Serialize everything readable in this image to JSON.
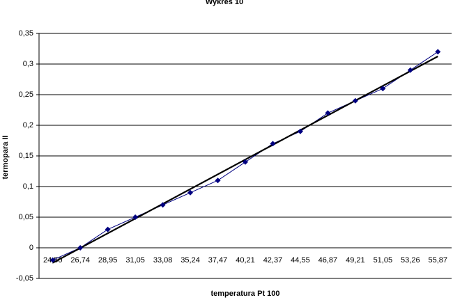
{
  "chart_data": {
    "type": "line",
    "title": "Wykres 10",
    "x_label": "temperatura Pt 100",
    "y_label": "termopara II",
    "categories": [
      "24,50",
      "26,74",
      "28,95",
      "31,05",
      "33,08",
      "35,24",
      "37,47",
      "40,21",
      "42,37",
      "44,55",
      "46,87",
      "49,21",
      "51,05",
      "53,26",
      "55,87"
    ],
    "series": [
      {
        "color": "#000080",
        "values": [
          -0.02,
          0,
          0.03,
          0.05,
          0.07,
          0.09,
          0.11,
          0.14,
          0.17,
          0.19,
          0.22,
          0.24,
          0.26,
          0.29,
          0.32
        ]
      }
    ],
    "trendline": "linear",
    "trendline_color": "#000000",
    "ylim": [
      -0.05,
      0.35
    ],
    "yticks": [
      {
        "value": -0.05,
        "label": "-0,05"
      },
      0,
      {
        "value": 0.05,
        "label": "0,05"
      },
      {
        "value": 0.1,
        "label": "0,1"
      },
      {
        "value": 0.15,
        "label": "0,15"
      },
      {
        "value": 0.2,
        "label": "0,2"
      },
      {
        "value": 0.25,
        "label": "0,25"
      },
      {
        "value": 0.3,
        "label": "0,3"
      },
      {
        "value": 0.35,
        "label": "0,35"
      }
    ],
    "grid": true
  }
}
